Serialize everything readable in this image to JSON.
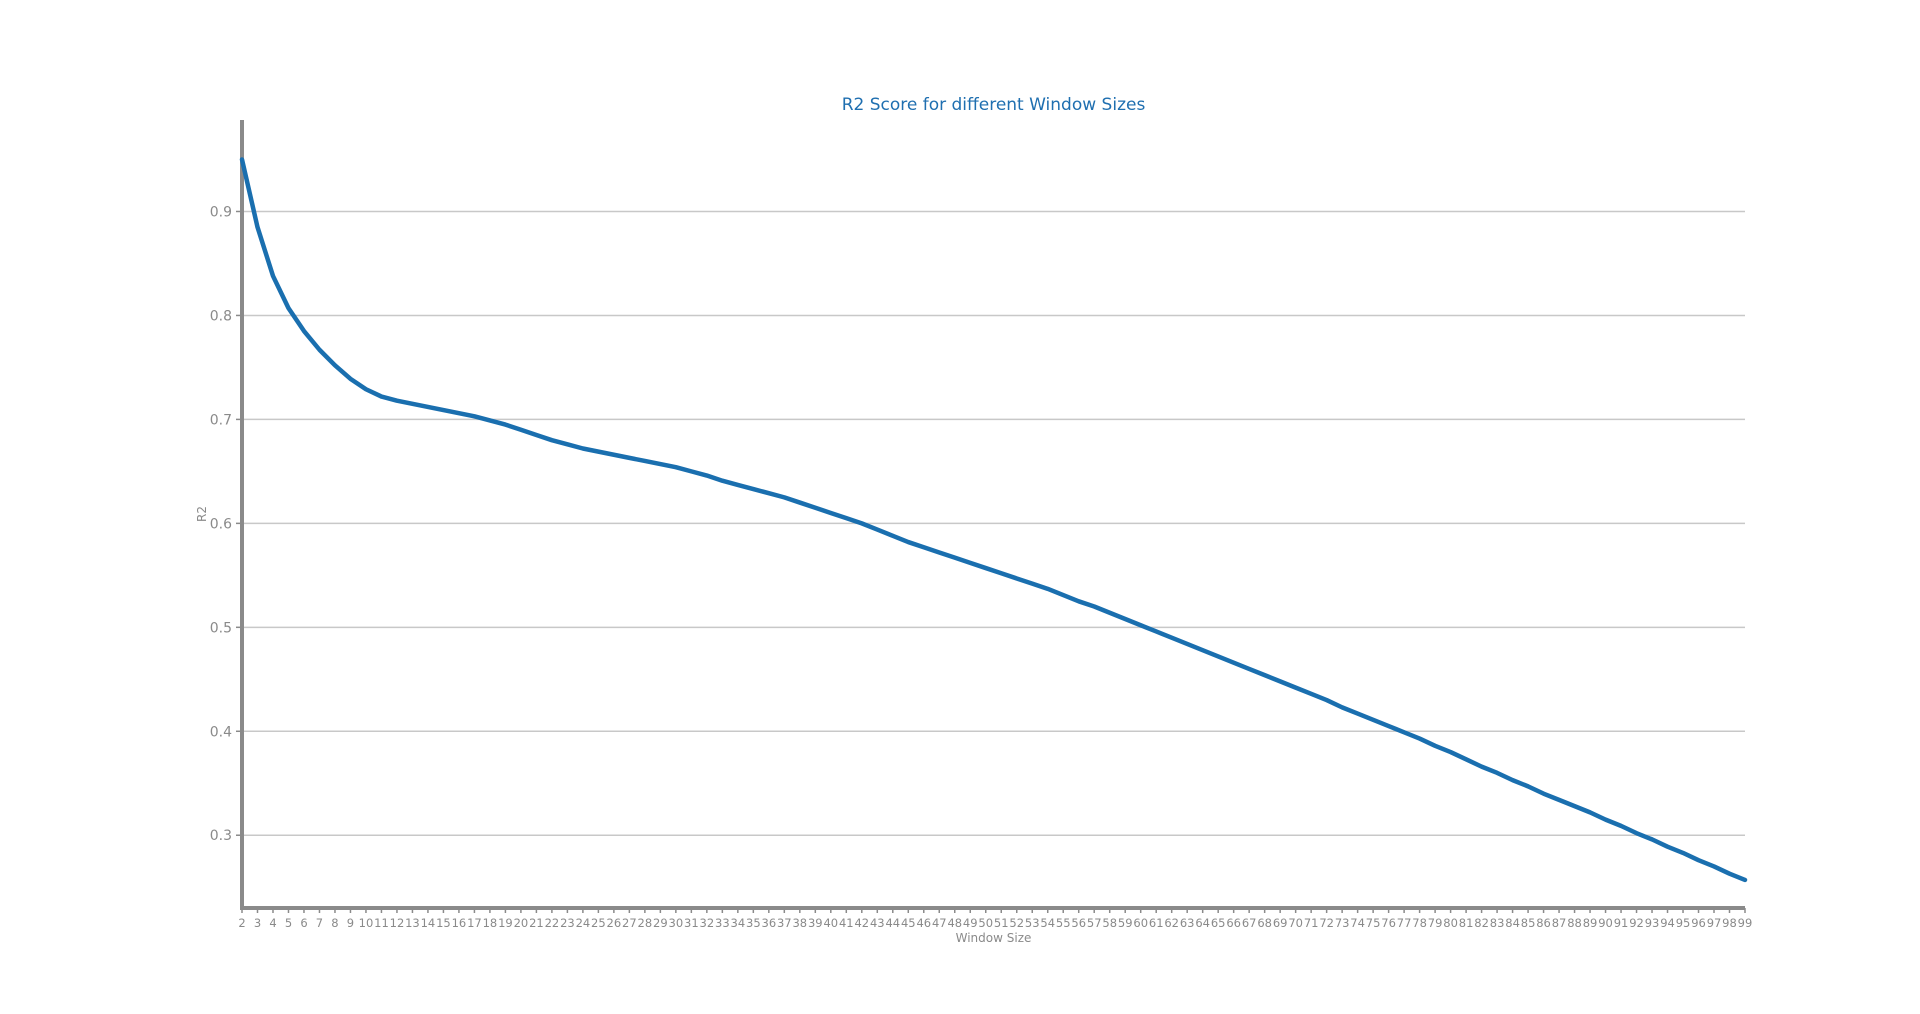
{
  "colors": {
    "line": "#1a6faf",
    "title": "#1f6fb0",
    "grid": "#c8c8c8",
    "axis": "#8a8a8a",
    "tick_text": "#8a8a8a"
  },
  "chart_data": {
    "type": "line",
    "title": "R2 Score for different Window Sizes",
    "xlabel": "Window Size",
    "ylabel": "R2",
    "xlim": [
      2,
      99
    ],
    "ylim": [
      0.23,
      0.988
    ],
    "yticks": [
      0.3,
      0.4,
      0.5,
      0.6,
      0.7,
      0.8,
      0.9
    ],
    "ytick_labels": [
      "0.3",
      "0.4",
      "0.5",
      "0.6",
      "0.7",
      "0.8",
      "0.9"
    ],
    "xticks": [
      2,
      3,
      4,
      5,
      6,
      7,
      8,
      9,
      10,
      11,
      12,
      13,
      14,
      15,
      16,
      17,
      18,
      19,
      20,
      21,
      22,
      23,
      24,
      25,
      26,
      27,
      28,
      29,
      30,
      31,
      32,
      33,
      34,
      35,
      36,
      37,
      38,
      39,
      40,
      41,
      42,
      43,
      44,
      45,
      46,
      47,
      48,
      49,
      50,
      51,
      52,
      53,
      54,
      55,
      56,
      57,
      58,
      59,
      60,
      61,
      62,
      63,
      64,
      65,
      66,
      67,
      68,
      69,
      70,
      71,
      72,
      73,
      74,
      75,
      76,
      77,
      78,
      79,
      80,
      81,
      82,
      83,
      84,
      85,
      86,
      87,
      88,
      89,
      90,
      91,
      92,
      93,
      94,
      95,
      96,
      97,
      98,
      99
    ],
    "xtick_labels": [
      "2",
      "3",
      "4",
      "5",
      "6",
      "7",
      "8",
      "9",
      "10",
      "11",
      "12",
      "13",
      "14",
      "15",
      "16",
      "17",
      "18",
      "19",
      "20",
      "21",
      "22",
      "23",
      "24",
      "25",
      "26",
      "27",
      "28",
      "29",
      "30",
      "31",
      "32",
      "33",
      "34",
      "35",
      "36",
      "37",
      "38",
      "39",
      "40",
      "41",
      "42",
      "43",
      "44",
      "45",
      "46",
      "47",
      "48",
      "49",
      "50",
      "51",
      "52",
      "53",
      "54",
      "55",
      "56",
      "57",
      "58",
      "59",
      "60",
      "61",
      "62",
      "63",
      "64",
      "65",
      "66",
      "67",
      "68",
      "69",
      "70",
      "71",
      "72",
      "73",
      "74",
      "75",
      "76",
      "77",
      "78",
      "79",
      "80",
      "81",
      "82",
      "83",
      "84",
      "85",
      "86",
      "87",
      "88",
      "89",
      "90",
      "91",
      "92",
      "93",
      "94",
      "95",
      "96",
      "97",
      "98",
      "99"
    ],
    "grid": "horizontal",
    "series": [
      {
        "x": [
          2,
          3,
          4,
          5,
          6,
          7,
          8,
          9,
          10,
          11,
          12,
          13,
          14,
          15,
          16,
          17,
          18,
          19,
          20,
          21,
          22,
          23,
          24,
          25,
          26,
          27,
          28,
          29,
          30,
          31,
          32,
          33,
          34,
          35,
          36,
          37,
          38,
          39,
          40,
          41,
          42,
          43,
          44,
          45,
          46,
          47,
          48,
          49,
          50,
          51,
          52,
          53,
          54,
          55,
          56,
          57,
          58,
          59,
          60,
          61,
          62,
          63,
          64,
          65,
          66,
          67,
          68,
          69,
          70,
          71,
          72,
          73,
          74,
          75,
          76,
          77,
          78,
          79,
          80,
          81,
          82,
          83,
          84,
          85,
          86,
          87,
          88,
          89,
          90,
          91,
          92,
          93,
          94,
          95,
          96,
          97,
          98,
          99
        ],
        "values": [
          0.95,
          0.885,
          0.838,
          0.807,
          0.785,
          0.767,
          0.752,
          0.739,
          0.729,
          0.722,
          0.718,
          0.715,
          0.712,
          0.709,
          0.706,
          0.703,
          0.699,
          0.695,
          0.69,
          0.685,
          0.68,
          0.676,
          0.672,
          0.669,
          0.666,
          0.663,
          0.66,
          0.657,
          0.654,
          0.65,
          0.646,
          0.641,
          0.637,
          0.633,
          0.629,
          0.625,
          0.62,
          0.615,
          0.61,
          0.605,
          0.6,
          0.594,
          0.588,
          0.582,
          0.577,
          0.572,
          0.567,
          0.562,
          0.557,
          0.552,
          0.547,
          0.542,
          0.537,
          0.531,
          0.525,
          0.52,
          0.514,
          0.508,
          0.502,
          0.496,
          0.49,
          0.484,
          0.478,
          0.472,
          0.466,
          0.46,
          0.454,
          0.448,
          0.442,
          0.436,
          0.43,
          0.423,
          0.417,
          0.411,
          0.405,
          0.399,
          0.393,
          0.386,
          0.38,
          0.373,
          0.366,
          0.36,
          0.353,
          0.347,
          0.34,
          0.334,
          0.328,
          0.322,
          0.315,
          0.309,
          0.302,
          0.296,
          0.289,
          0.283,
          0.276,
          0.27,
          0.263,
          0.257
        ]
      }
    ]
  }
}
